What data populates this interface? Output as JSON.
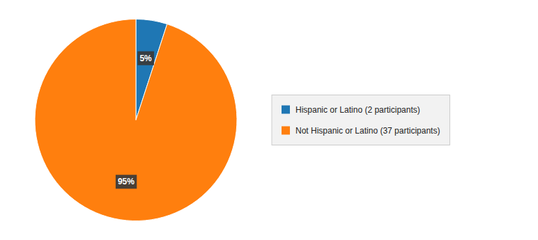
{
  "chart_data": {
    "type": "pie",
    "categories": [
      "Hispanic or Latino (2 participants)",
      "Not Hispanic or Latino (37 participants)"
    ],
    "values": [
      5,
      95
    ],
    "value_labels": [
      "5%",
      "95%"
    ],
    "data_labels": true,
    "legend": "right"
  }
}
